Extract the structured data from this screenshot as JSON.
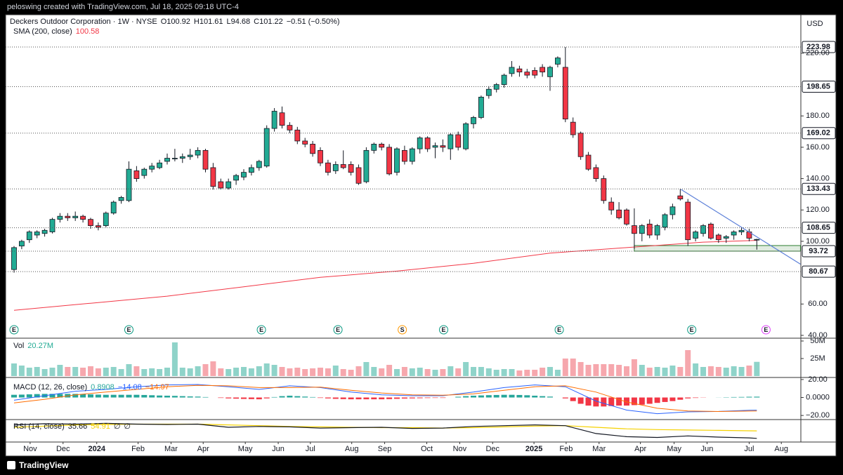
{
  "header": {
    "watermark": "peloswing created with TradingView.com, Jul 18, 2025 09:18 UTC-4",
    "brand": "TradingView"
  },
  "chart_data": [
    {
      "type": "candlestick",
      "title": "Deckers Outdoor Corporation · 1W · NYSE",
      "ohlc_labels": [
        "O100.92",
        "H101.61",
        "L94.68",
        "C101.22",
        "−0.51 (−0.50%)"
      ],
      "currency": "USD",
      "open": [
        82,
        97,
        101,
        104,
        105,
        106,
        114,
        116,
        115,
        116,
        114,
        110,
        110,
        118,
        126,
        126,
        145,
        142,
        146,
        147,
        151,
        153,
        153,
        154,
        155,
        158,
        147,
        138,
        134,
        139,
        141,
        144,
        147,
        148,
        172,
        182,
        174,
        171,
        164,
        162,
        158,
        150,
        145,
        149,
        149,
        147,
        138,
        158,
        162,
        160,
        144,
        158,
        151,
        159,
        166,
        160,
        161,
        159,
        168,
        159,
        175,
        179,
        193,
        197,
        200,
        207,
        210,
        208,
        209,
        211,
        205,
        213,
        211,
        176,
        169,
        155,
        147,
        140,
        125,
        120,
        120,
        110,
        105,
        111,
        104,
        109,
        117,
        129,
        125,
        102,
        105,
        111,
        104,
        102,
        104,
        106,
        106,
        100.92
      ],
      "high": [
        97,
        101,
        107,
        107,
        108,
        115,
        118,
        118,
        119,
        117,
        115,
        112,
        119,
        126,
        129,
        151,
        148,
        147,
        150,
        152,
        156,
        159,
        156,
        159,
        160,
        159,
        150,
        140,
        140,
        143,
        146,
        149,
        152,
        174,
        185,
        186,
        176,
        173,
        166,
        164,
        160,
        152,
        151,
        158,
        151,
        149,
        160,
        163,
        163,
        162,
        160,
        161,
        160,
        167,
        167,
        163,
        165,
        169,
        170,
        176,
        180,
        193,
        199,
        201,
        207,
        215,
        212,
        210,
        211,
        213,
        212,
        218,
        223.98,
        179,
        170,
        157,
        149,
        142,
        128,
        125,
        121,
        121,
        111,
        114,
        111,
        118,
        124,
        133.43,
        127,
        107,
        111,
        112,
        105,
        104,
        107,
        109,
        108,
        101.61
      ],
      "low": [
        80,
        95,
        99,
        102,
        103,
        105,
        112,
        113,
        113,
        112,
        108,
        107,
        109,
        117,
        124,
        125,
        138,
        140,
        144,
        146,
        149,
        151,
        150,
        152,
        153,
        144,
        133,
        133,
        133,
        136,
        139,
        142,
        145,
        147,
        170,
        172,
        169,
        162,
        160,
        154,
        148,
        142,
        143,
        146,
        142,
        136,
        137,
        156,
        158,
        142,
        142,
        149,
        149,
        156,
        157,
        153,
        157,
        152,
        158,
        158,
        172,
        178,
        191,
        195,
        198,
        205,
        205,
        204,
        204,
        205,
        196,
        211,
        176,
        166,
        152,
        145,
        138,
        124,
        117,
        114,
        110,
        95,
        100,
        102,
        101,
        107,
        114,
        126,
        97,
        100,
        103,
        101,
        99,
        99,
        101,
        104,
        100,
        94.68
      ],
      "close": [
        96,
        100,
        106,
        106,
        107,
        114,
        116,
        115,
        116,
        114,
        110,
        109,
        118,
        125,
        128,
        146,
        140,
        146,
        148,
        150,
        153,
        153,
        154,
        155,
        158,
        146,
        135,
        134,
        138,
        142,
        144,
        147,
        151,
        172,
        183,
        174,
        171,
        164,
        162,
        156,
        150,
        144,
        149,
        147,
        144,
        137,
        158,
        162,
        160,
        143,
        159,
        151,
        159,
        166,
        159,
        161,
        160,
        168,
        160,
        175,
        179,
        192,
        197,
        200,
        206,
        211,
        208,
        206,
        206,
        208,
        211,
        217,
        178,
        168,
        154,
        146,
        140,
        126,
        120,
        115,
        111,
        105,
        110,
        104,
        110,
        117,
        122,
        127,
        101,
        106,
        110,
        102,
        101,
        103,
        106,
        107,
        102,
        101.22
      ],
      "up_color": "#22ab94",
      "down_color": "#f23645",
      "xlim": [
        -1.1,
        102.75
      ],
      "xticks": [
        {
          "value": 2.1,
          "label": "Nov"
        },
        {
          "value": 6.4,
          "label": "Dec"
        },
        {
          "value": 10.8,
          "label": "2024"
        },
        {
          "value": 16.2,
          "label": "Feb"
        },
        {
          "value": 20.5,
          "label": "Mar"
        },
        {
          "value": 24.7,
          "label": "Apr"
        },
        {
          "value": 30.2,
          "label": "May"
        },
        {
          "value": 34.5,
          "label": "Jun"
        },
        {
          "value": 38.7,
          "label": "Jul"
        },
        {
          "value": 44.1,
          "label": "Aug"
        },
        {
          "value": 48.4,
          "label": "Sep"
        },
        {
          "value": 53.9,
          "label": "Oct"
        },
        {
          "value": 58.2,
          "label": "Nov"
        },
        {
          "value": 62.5,
          "label": "Dec"
        },
        {
          "value": 67.9,
          "label": "2025"
        },
        {
          "value": 72.1,
          "label": "Feb"
        },
        {
          "value": 76.4,
          "label": "Mar"
        },
        {
          "value": 81.8,
          "label": "Apr"
        },
        {
          "value": 86.2,
          "label": "May"
        },
        {
          "value": 90.5,
          "label": "Jun"
        },
        {
          "value": 96,
          "label": "Jul"
        },
        {
          "value": 100.2,
          "label": "Aug"
        }
      ],
      "ylim": [
        38.2,
        244.1
      ],
      "yticks": [
        {
          "value": 220,
          "label": "220.00"
        },
        {
          "value": 180,
          "label": "180.00"
        },
        {
          "value": 160,
          "label": "160.00"
        },
        {
          "value": 140,
          "label": "140.00"
        },
        {
          "value": 120,
          "label": "120.00"
        },
        {
          "value": 100,
          "label": "100.00"
        },
        {
          "value": 60,
          "label": "60.00"
        },
        {
          "value": 40,
          "label": "40.00"
        }
      ],
      "levels": [
        223.98,
        198.65,
        169.02,
        133.43,
        108.65,
        93.72,
        80.67
      ],
      "sma": {
        "name": "SMA (200, close)",
        "value_label": "100.58",
        "color": "#f23645",
        "x": [
          0,
          10,
          20,
          30,
          40,
          50,
          60,
          70,
          80,
          90,
          97
        ],
        "values": [
          56,
          60.5,
          65,
          71,
          77,
          81,
          86,
          92.5,
          96,
          99.5,
          100.58
        ]
      },
      "trendline": {
        "color": "#5b7fd8",
        "x": [
          87.1,
          102.7
        ],
        "values": [
          133.1,
          85.4
        ]
      },
      "zone": {
        "color": "#2e7d32",
        "x": [
          81,
          102.7
        ],
        "values": [
          93.72,
          97.3
        ]
      },
      "events": [
        {
          "x": 0,
          "label": "E",
          "color": "#089981"
        },
        {
          "x": 15,
          "label": "E",
          "color": "#089981"
        },
        {
          "x": 32.3,
          "label": "E",
          "color": "#089981"
        },
        {
          "x": 42.3,
          "label": "E",
          "color": "#089981"
        },
        {
          "x": 50.7,
          "label": "S",
          "color": "#ff9800"
        },
        {
          "x": 56.1,
          "label": "E",
          "color": "#089981"
        },
        {
          "x": 71.2,
          "label": "E",
          "color": "#089981"
        },
        {
          "x": 88.5,
          "label": "E",
          "color": "#089981"
        },
        {
          "x": 98.2,
          "label": "E",
          "color": "#e040fb"
        }
      ]
    },
    {
      "type": "bar",
      "name": "Vol",
      "value_label": "20.27M",
      "up_color": "#8fd3c9",
      "down_color": "#f6a7ad",
      "values": [
        18,
        15,
        12,
        13,
        10,
        12,
        16,
        13,
        13,
        12,
        14,
        11,
        12,
        13,
        10,
        17,
        14,
        10,
        11,
        10,
        12,
        48,
        12,
        11,
        14,
        17,
        21,
        11,
        10,
        12,
        13,
        11,
        14,
        18,
        16,
        13,
        11,
        12,
        10,
        11,
        12,
        11,
        15,
        10,
        9,
        14,
        20,
        13,
        11,
        16,
        10,
        13,
        11,
        12,
        10,
        9,
        10,
        14,
        11,
        20,
        13,
        13,
        11,
        9,
        10,
        10,
        8,
        9,
        9,
        12,
        13,
        9,
        25,
        25,
        20,
        16,
        17,
        17,
        17,
        16,
        14,
        24,
        16,
        12,
        13,
        12,
        15,
        13,
        37,
        18,
        13,
        14,
        13,
        12,
        14,
        13,
        15,
        20.27
      ],
      "ylim": [
        0,
        53
      ],
      "yticks": [
        {
          "value": 50,
          "label": "50M"
        },
        {
          "value": 25,
          "label": "25M"
        }
      ]
    },
    {
      "type": "macd",
      "name": "MACD (12, 26, close)",
      "histogram": {
        "value_label": "0.8908",
        "up_color": "#26a69a",
        "down_color": "#f23645",
        "values": [
          3,
          3.2,
          3.5,
          3.8,
          4,
          4,
          4,
          4,
          4,
          3.8,
          3.5,
          3.2,
          3,
          3,
          3,
          3,
          3,
          2.8,
          2.5,
          2.2,
          2,
          1.8,
          1.5,
          1.2,
          1,
          0.5,
          0,
          -0.5,
          -1,
          -1.3,
          -1.6,
          -1.8,
          -2,
          -1,
          0.5,
          1.5,
          2,
          1.5,
          1,
          0.5,
          -0.5,
          -1,
          -1.5,
          -1.8,
          -2,
          -2,
          -2,
          -2,
          -2,
          -1.8,
          -1.5,
          -1.2,
          -1,
          -0.8,
          -0.6,
          -0.5,
          -0.5,
          0,
          0.8,
          1.5,
          2,
          2.3,
          2.6,
          2.8,
          3,
          3,
          2.8,
          2.5,
          2,
          1.5,
          1,
          0,
          -1,
          -4,
          -7,
          -9,
          -10,
          -10,
          -9.5,
          -9,
          -9,
          -8.5,
          -8,
          -7,
          -6,
          -5,
          -4,
          -2.5,
          -1,
          -0.5,
          -0.2,
          0,
          0.1,
          0.3,
          0.5,
          0.6,
          0.8,
          0.8908
        ]
      },
      "series": [
        {
          "color": "#2962ff",
          "value_label": "−14.08",
          "x": [
            0,
            4,
            8,
            12,
            16,
            20,
            24,
            28,
            32,
            36,
            40,
            44,
            48,
            52,
            56,
            60,
            64,
            68,
            72,
            76,
            80,
            84,
            88,
            92,
            96,
            97
          ],
          "values": [
            -3,
            2,
            7,
            9,
            12,
            14,
            14.5,
            12,
            9,
            13,
            11,
            6,
            3,
            2,
            2,
            6,
            11,
            14,
            12,
            -4,
            -14,
            -18,
            -16,
            -15.5,
            -14.3,
            -14.08
          ]
        },
        {
          "color": "#ff6d00",
          "value_label": "−14.97",
          "x": [
            0,
            4,
            8,
            12,
            16,
            20,
            24,
            28,
            32,
            36,
            40,
            44,
            48,
            52,
            56,
            60,
            64,
            68,
            72,
            76,
            80,
            84,
            88,
            92,
            96,
            97
          ],
          "values": [
            -6,
            -2,
            3,
            6,
            9,
            12,
            13.5,
            13,
            11,
            11,
            11.5,
            8,
            5,
            3,
            2.5,
            4,
            8,
            12,
            13,
            6,
            -5,
            -12,
            -15,
            -15.6,
            -15.1,
            -14.97
          ]
        }
      ],
      "ylim": [
        -23.8,
        21.5
      ],
      "yticks": [
        {
          "value": 20,
          "label": "20.00"
        },
        {
          "value": 0,
          "label": "0.0000"
        },
        {
          "value": -20,
          "label": "−20.00"
        }
      ]
    },
    {
      "type": "line",
      "name": "RSI (14, close)",
      "placeholders": [
        "∅",
        "∅"
      ],
      "series": [
        {
          "color": "#131722",
          "value_label": "35.66",
          "x": [
            0,
            4,
            8,
            12,
            16,
            20,
            24,
            28,
            32,
            36,
            40,
            44,
            48,
            52,
            56,
            60,
            64,
            68,
            72,
            76,
            80,
            84,
            88,
            92,
            96,
            97
          ],
          "values": [
            70,
            73,
            72,
            74,
            72,
            71,
            72,
            64,
            66,
            65,
            62,
            63,
            64,
            61,
            62,
            66,
            68,
            70,
            68,
            48,
            40,
            38,
            42,
            39,
            37,
            35.66
          ]
        },
        {
          "color": "#f5d100",
          "value_label": "54.91",
          "x": [
            0,
            4,
            8,
            12,
            16,
            20,
            24,
            28,
            32,
            36,
            40,
            44,
            48,
            52,
            56,
            60,
            64,
            68,
            72,
            76,
            80,
            84,
            88,
            92,
            96,
            97
          ],
          "values": [
            64,
            67,
            70,
            71,
            72,
            72,
            72,
            70,
            68,
            66,
            65,
            64,
            63,
            63,
            62,
            63,
            65,
            67,
            68,
            64,
            60,
            58,
            57,
            56,
            55,
            54.91
          ]
        }
      ],
      "ylim": [
        30,
        80
      ]
    }
  ]
}
